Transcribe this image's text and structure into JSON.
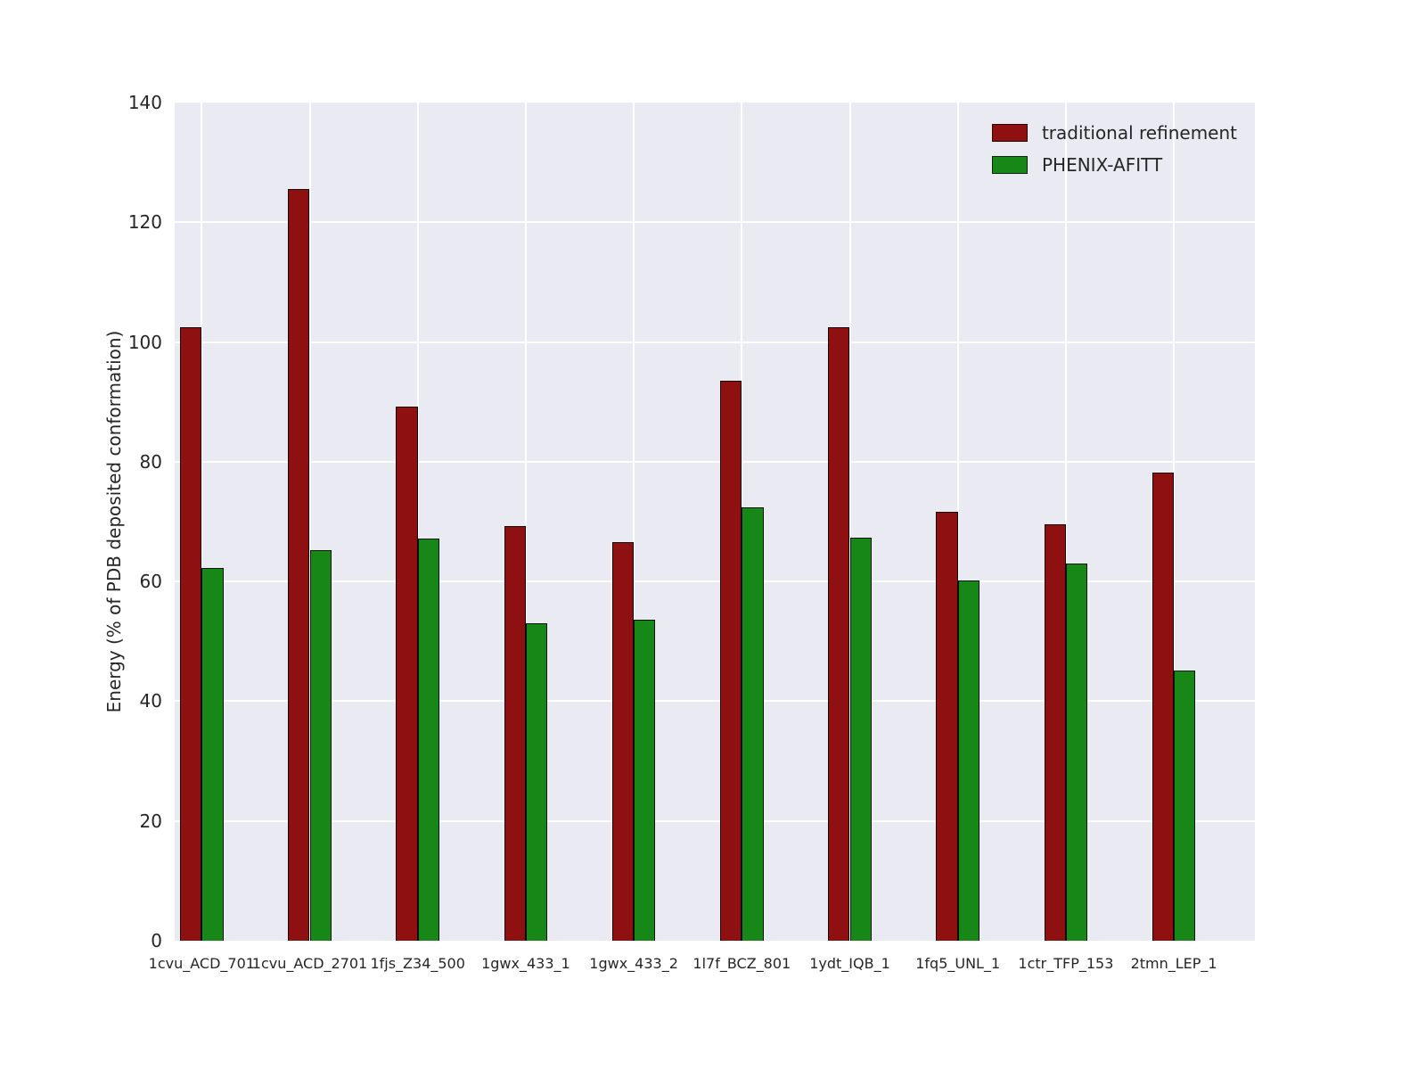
{
  "figure": {
    "background_color": "#ffffff",
    "axes_background_color": "#eaeaf2",
    "grid_color": "#ffffff",
    "text_color": "#262626"
  },
  "chart_data": {
    "type": "bar",
    "title": "",
    "xlabel": "",
    "ylabel": "Energy (% of PDB deposited conformation)",
    "ylim": [
      0,
      140
    ],
    "yticks": [
      0,
      20,
      40,
      60,
      80,
      100,
      120,
      140
    ],
    "grid": true,
    "legend_position": "upper right",
    "categories": [
      "1cvu_ACD_701",
      "1cvu_ACD_2701",
      "1fjs_Z34_500",
      "1gwx_433_1",
      "1gwx_433_2",
      "1l7f_BCZ_801",
      "1ydt_IQB_1",
      "1fq5_UNL_1",
      "1ctr_TFP_153",
      "2tmn_LEP_1"
    ],
    "series": [
      {
        "name": "traditional refinement",
        "color": "#8f1010",
        "values": [
          102.5,
          125.5,
          89.2,
          69.2,
          66.6,
          93.5,
          102.4,
          71.6,
          69.6,
          78.2
        ]
      },
      {
        "name": "PHENIX-AFITT",
        "color": "#178717",
        "values": [
          62.2,
          65.2,
          67.1,
          53.0,
          53.6,
          72.4,
          67.3,
          60.2,
          63.0,
          45.2
        ]
      }
    ]
  }
}
